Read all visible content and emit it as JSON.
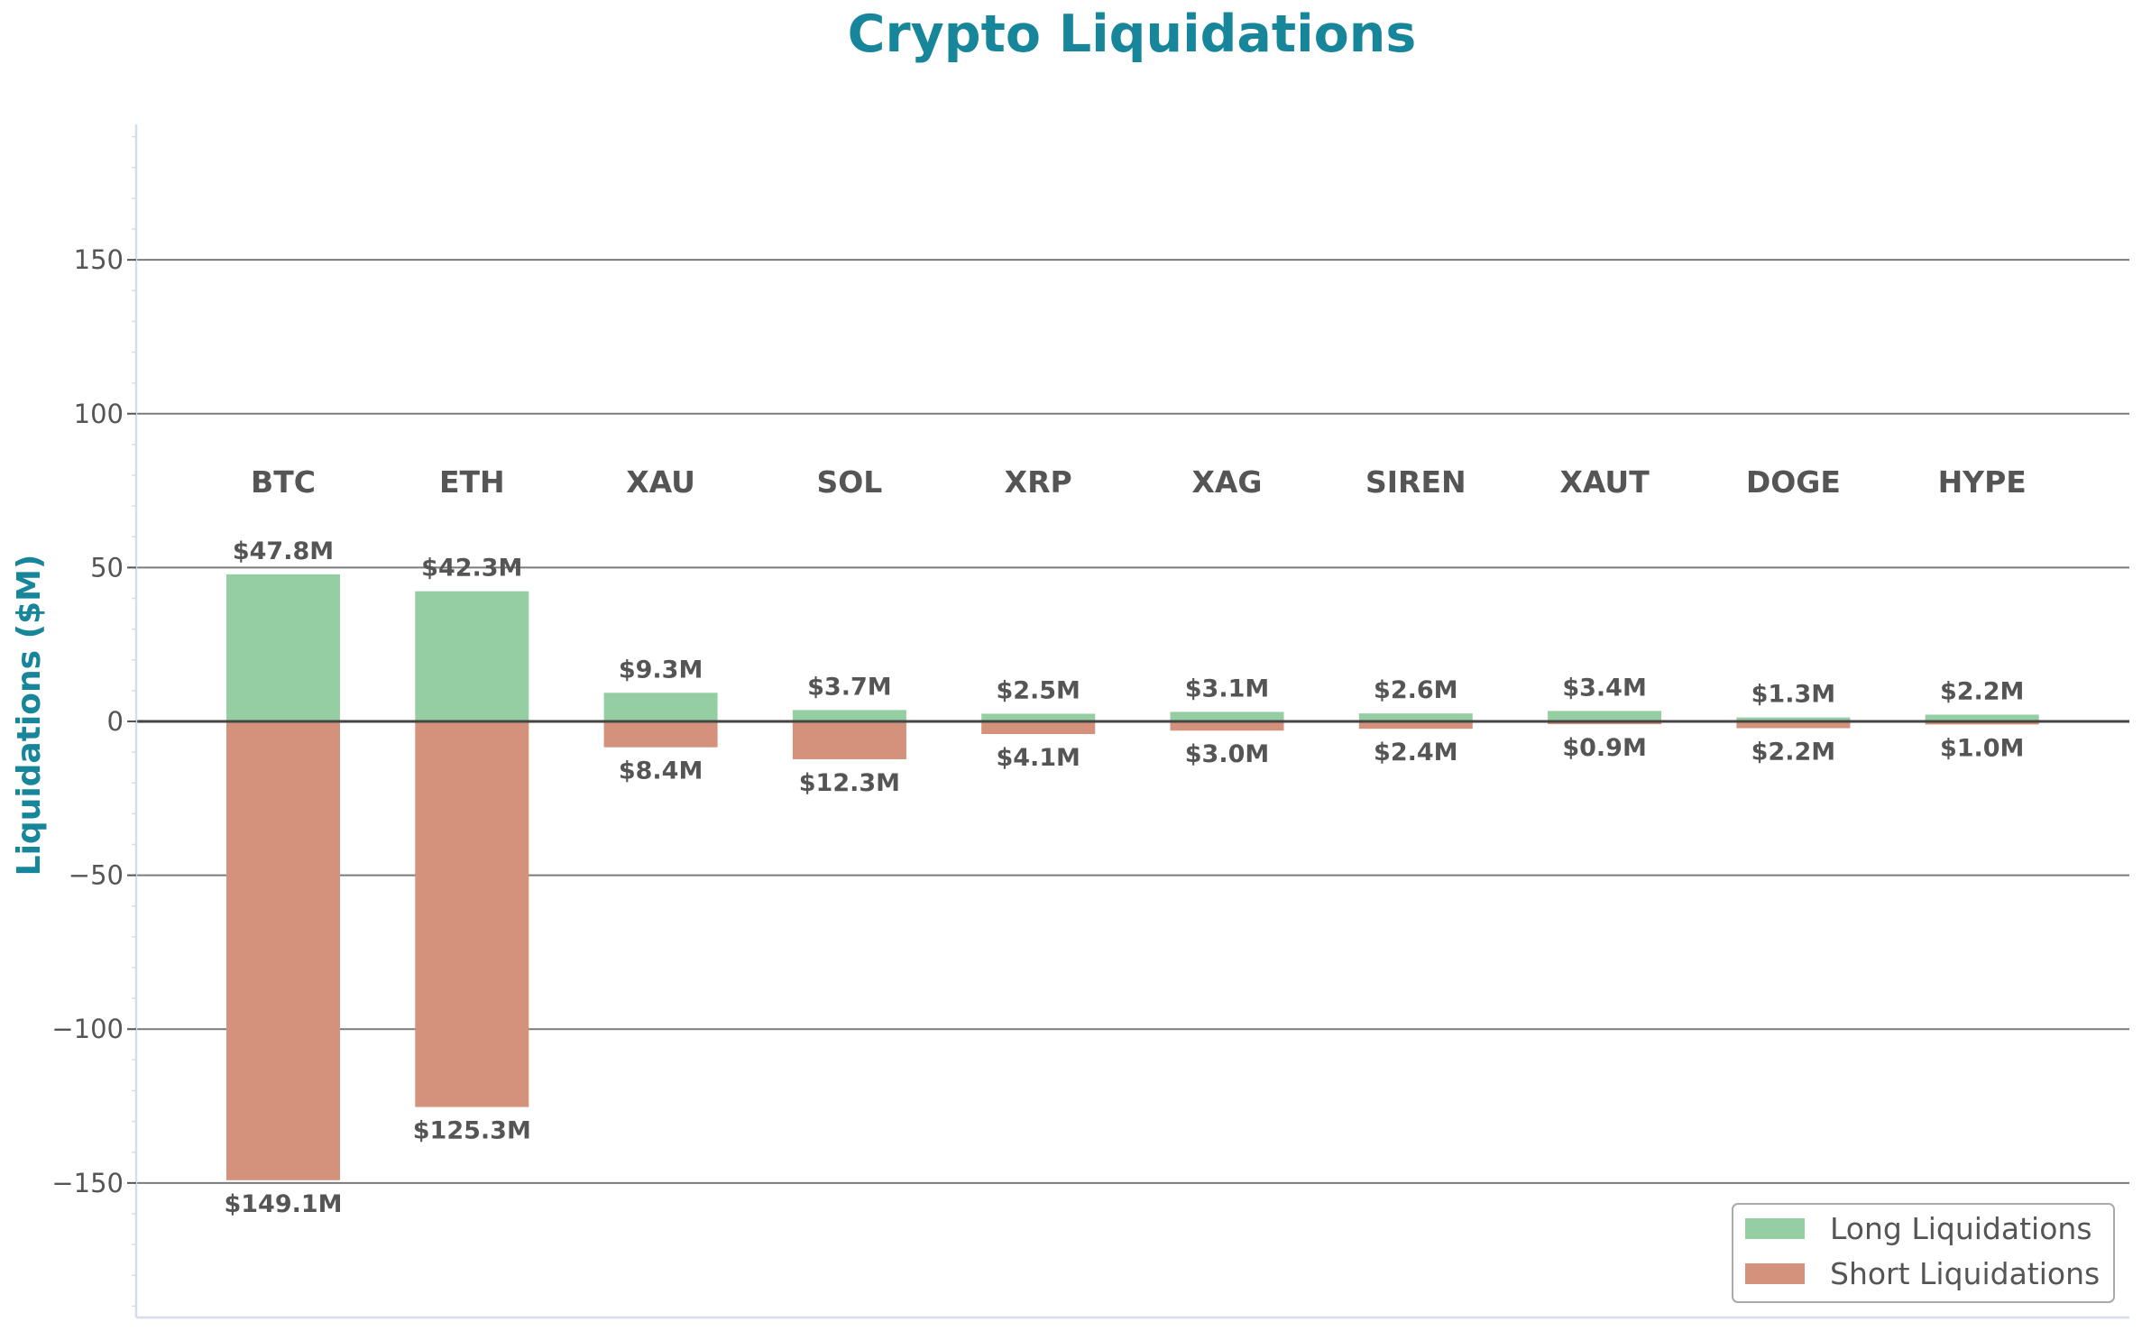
{
  "chart_data": {
    "type": "bar",
    "title": "Crypto Liquidations",
    "xlabel": "",
    "ylabel": "Liquidations ($M)",
    "ylim": [
      -194,
      194
    ],
    "yticks": [
      -150,
      -100,
      -50,
      0,
      50,
      100,
      150
    ],
    "ytick_labels": [
      "−150",
      "−100",
      "−50",
      "0",
      "50",
      "100",
      "150"
    ],
    "grid": true,
    "legend_position": "lower right",
    "categories": [
      "BTC",
      "ETH",
      "XAU",
      "SOL",
      "XRP",
      "XAG",
      "SIREN",
      "XAUT",
      "DOGE",
      "HYPE"
    ],
    "series": [
      {
        "name": "Long Liquidations",
        "color": "#95cea2",
        "values": [
          47.8,
          42.3,
          9.3,
          3.7,
          2.5,
          3.1,
          2.6,
          3.4,
          1.3,
          2.2
        ],
        "labels": [
          "$47.8M",
          "$42.3M",
          "$9.3M",
          "$3.7M",
          "$2.5M",
          "$3.1M",
          "$2.6M",
          "$3.4M",
          "$1.3M",
          "$2.2M"
        ]
      },
      {
        "name": "Short Liquidations",
        "color": "#d4917b",
        "values": [
          -149.1,
          -125.3,
          -8.4,
          -12.3,
          -4.1,
          -3.0,
          -2.4,
          -0.9,
          -2.2,
          -1.0
        ],
        "labels": [
          "$149.1M",
          "$125.3M",
          "$8.4M",
          "$12.3M",
          "$4.1M",
          "$3.0M",
          "$2.4M",
          "$0.9M",
          "$2.2M",
          "$1.0M"
        ]
      }
    ]
  },
  "colors": {
    "title": "#17869a",
    "text": "#555555",
    "grid": "#7a7a7a",
    "zero_line": "#444444",
    "spine": "#d5dcea"
  }
}
